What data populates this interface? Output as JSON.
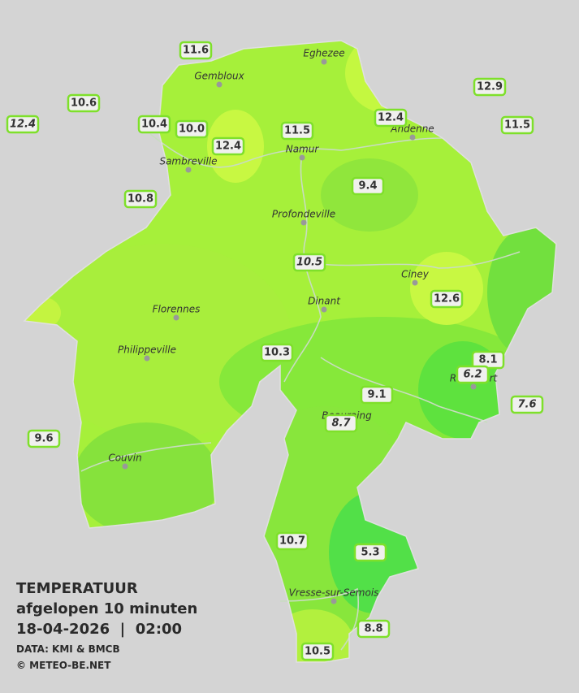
{
  "legend": {
    "title": "TEMPERATUUR",
    "subtitle": "afgelopen 10 minuten",
    "datetime": "18-04-2026  |  02:00",
    "source": "DATA: KMI & BMCB",
    "credit": "© METEO-BE.NET"
  },
  "cities": [
    "Eghezee",
    "Gembloux",
    "Andenne",
    "Namur",
    "Sambreville",
    "Profondeville",
    "Ciney",
    "Dinant",
    "Florennes",
    "Philippeville",
    "Rochefort",
    "Beauraing",
    "Couvin",
    "Vresse-sur-Semois"
  ],
  "stations": [
    "11.6",
    "10.6",
    "12.4",
    "10.4",
    "10.0",
    "12.4",
    "11.5",
    "12.4",
    "12.9",
    "11.5",
    "10.8",
    "9.4",
    "10.5",
    "12.6",
    "10.3",
    "8.1",
    "6.2",
    "7.6",
    "9.1",
    "8.7",
    "9.6",
    "10.7",
    "5.3",
    "8.8",
    "10.5"
  ]
}
